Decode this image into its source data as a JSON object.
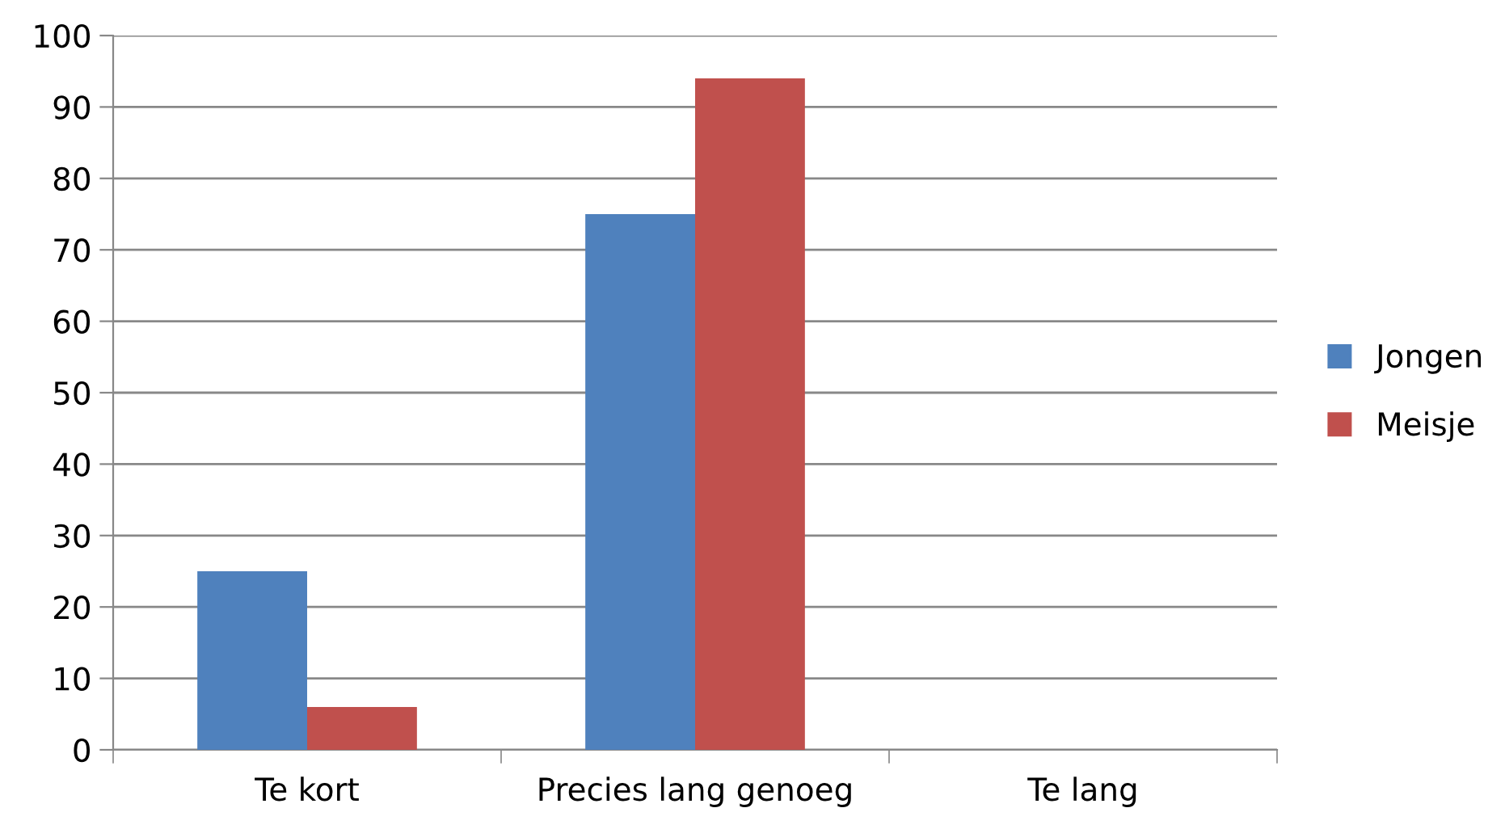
{
  "chart_data": {
    "type": "bar",
    "categories": [
      "Te kort",
      "Precies lang genoeg",
      "Te lang"
    ],
    "series": [
      {
        "name": "Jongen",
        "color": "#4f81bd",
        "values": [
          25,
          75,
          0
        ]
      },
      {
        "name": "Meisje",
        "color": "#c0504d",
        "values": [
          6,
          94,
          0
        ]
      }
    ],
    "ylim": [
      0,
      100
    ],
    "yticks": [
      0,
      10,
      20,
      30,
      40,
      50,
      60,
      70,
      80,
      90,
      100
    ],
    "grid": "y",
    "legend": "right"
  }
}
